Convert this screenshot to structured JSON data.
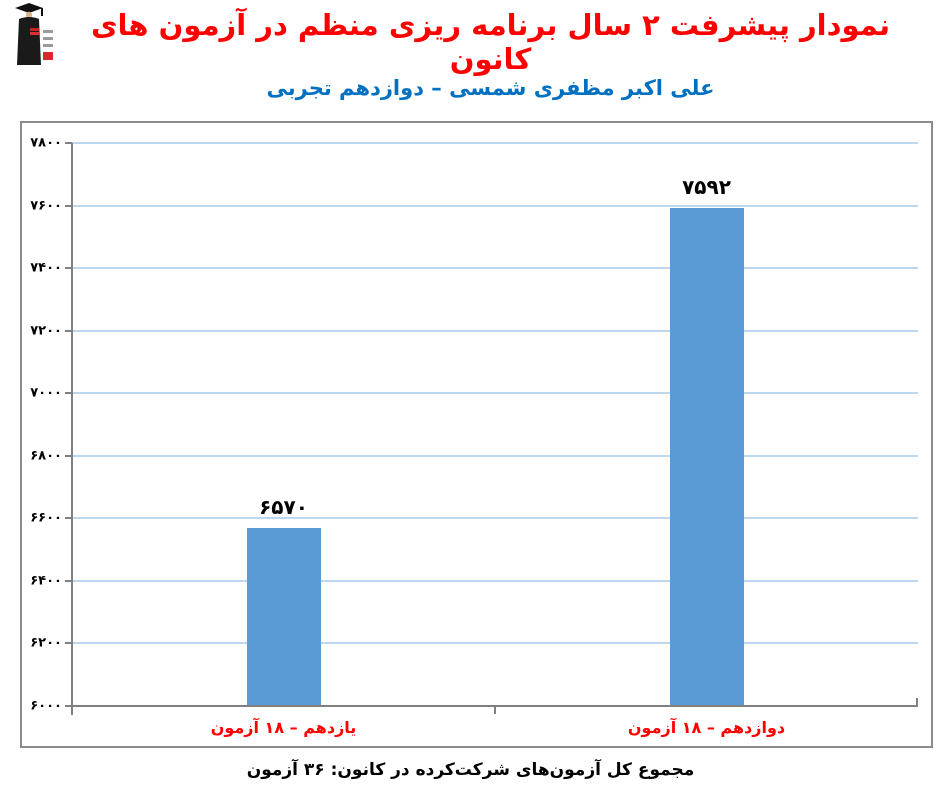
{
  "header": {
    "title": "نمودار پیشرفت ۲ سال برنامه ریزی منظم در آزمون های کانون",
    "subtitle": "علی اکبر مظفری شمسی – دوازدهم تجربی",
    "logo_name": "kanoon-ghalamchi-logo"
  },
  "chart_data": {
    "type": "bar",
    "title": "نمودار پیشرفت ۲ سال برنامه ریزی منظم در آزمون های کانون",
    "subtitle": "علی اکبر مظفری شمسی – دوازدهم تجربی",
    "categories": [
      "یازدهم – ۱۸ آزمون",
      "دوازدهم – ۱۸ آزمون"
    ],
    "values": [
      6570,
      7592
    ],
    "value_labels": [
      "۶۵۷۰",
      "۷۵۹۲"
    ],
    "xlabel": "",
    "ylabel": "",
    "ylim": [
      6000,
      7800
    ],
    "ytick_step": 200,
    "yticks": [
      7800,
      7600,
      7400,
      7200,
      7000,
      6800,
      6600,
      6400,
      6200,
      6000
    ],
    "ytick_labels": [
      "۷۸۰۰",
      "۷۶۰۰",
      "۷۴۰۰",
      "۷۲۰۰",
      "۷۰۰۰",
      "۶۸۰۰",
      "۶۶۰۰",
      "۶۴۰۰",
      "۶۲۰۰",
      "۶۰۰۰"
    ],
    "grid": true,
    "legend": false
  },
  "footer": {
    "text": "مجموع کل آزمون‌های شرکت‌کرده در کانون: ۳۶ آزمون"
  },
  "colors": {
    "title": "#FF0000",
    "subtitle": "#0070C0",
    "bar": "#5B9BD5",
    "gridline": "#BDD7EE",
    "axis": "#808080",
    "chart_border": "#8C8C8C",
    "category_label": "#FF0000",
    "value_label": "#000000"
  }
}
